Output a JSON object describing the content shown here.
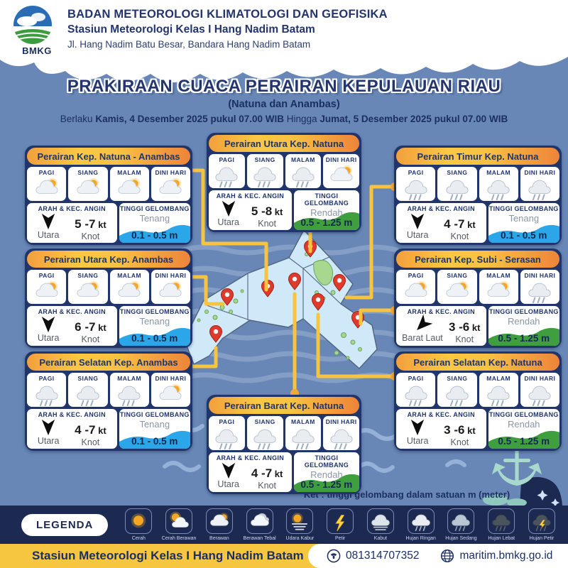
{
  "header": {
    "logo_text": "BMKG",
    "org": "BADAN METEOROLOGI KLIMATOLOGI DAN GEOFISIKA",
    "station": "Stasiun Meteorologi Kelas I Hang Nadim Batam",
    "address": "Jl. Hang Nadim Batu Besar, Bandara Hang Nadim Batam"
  },
  "title": {
    "main": "PRAKIRAAN CUACA PERAIRAN KEPULAUAN RIAU",
    "sub": "(Natuna dan Anambas)",
    "validity": {
      "prefix": "Berlaku",
      "start": "Kamis, 4 Desember 2025 pukul 07.00",
      "tz1": "WIB",
      "connector": "Hingga",
      "end": "Jumat, 5 Desember 2025 pukul 07.00",
      "tz2": "WIB"
    }
  },
  "labels": {
    "time_slots": [
      "PAGI",
      "SIANG",
      "MALAM",
      "DINI HARI"
    ],
    "wind": "ARAH & KEC. ANGIN",
    "wave": "TINGGI GELOMBANG",
    "knot": "Knot"
  },
  "cards": [
    {
      "title": "Perairan Kep. Natuna - Anambas",
      "icons": [
        "berawan",
        "berawan",
        "berawan",
        "berawan"
      ],
      "wind": {
        "dir": "Utara",
        "min": "5",
        "max": "-7",
        "unit": "kt"
      },
      "wave": {
        "category": "Tenang",
        "value": "0.1 - 0.5 m",
        "color": "blue"
      }
    },
    {
      "title": "Perairan Utara Kep. Natuna",
      "icons": [
        "hujan-ringan",
        "hujan-ringan",
        "hujan-ringan",
        "berawan"
      ],
      "wind": {
        "dir": "Utara",
        "min": "5",
        "max": "-8",
        "unit": "kt"
      },
      "wave": {
        "category": "Rendah",
        "value": "0.5 - 1.25 m",
        "color": "green"
      }
    },
    {
      "title": "Perairan Timur Kep. Natuna",
      "icons": [
        "hujan-ringan",
        "hujan-ringan",
        "hujan-ringan",
        "hujan-ringan"
      ],
      "wind": {
        "dir": "Utara",
        "min": "4",
        "max": "-7",
        "unit": "kt"
      },
      "wave": {
        "category": "Tenang",
        "value": "0.1 - 0.5 m",
        "color": "blue"
      }
    },
    {
      "title": "Perairan Utara Kep. Anambas",
      "icons": [
        "berawan",
        "berawan",
        "berawan",
        "berawan"
      ],
      "wind": {
        "dir": "Utara",
        "min": "6",
        "max": "-7",
        "unit": "kt"
      },
      "wave": {
        "category": "Tenang",
        "value": "0.1 - 0.5 m",
        "color": "blue"
      }
    },
    {
      "title": "Perairan Kep. Subi - Serasan",
      "icons": [
        "berawan",
        "berawan",
        "berawan",
        "hujan-ringan"
      ],
      "wind": {
        "dir": "Barat Laut",
        "min": "3",
        "max": "-6",
        "unit": "kt"
      },
      "wave": {
        "category": "Rendah",
        "value": "0.5 - 1.25 m",
        "color": "green"
      }
    },
    {
      "title": "Perairan Selatan Kep. Anambas",
      "icons": [
        "hujan-ringan",
        "hujan-ringan",
        "hujan-ringan",
        "berawan"
      ],
      "wind": {
        "dir": "Utara",
        "min": "4",
        "max": "-7",
        "unit": "kt"
      },
      "wave": {
        "category": "Tenang",
        "value": "0.1 - 0.5 m",
        "color": "blue"
      }
    },
    {
      "title": "Perairan Selatan Kep. Natuna",
      "icons": [
        "hujan-ringan",
        "hujan-ringan",
        "hujan-ringan",
        "hujan-ringan"
      ],
      "wind": {
        "dir": "Utara",
        "min": "3",
        "max": "-6",
        "unit": "kt"
      },
      "wave": {
        "category": "Rendah",
        "value": "0.5 - 1.25 m",
        "color": "green"
      }
    },
    {
      "title": "Perairan Barat Kep. Natuna",
      "icons": [
        "hujan-ringan",
        "hujan-ringan",
        "hujan-ringan",
        "hujan-ringan"
      ],
      "wind": {
        "dir": "Utara",
        "min": "4",
        "max": "-7",
        "unit": "kt"
      },
      "wave": {
        "category": "Rendah",
        "value": "0.5 - 1.25 m",
        "color": "green"
      }
    }
  ],
  "note": "Ket : tinggi gelombang dalam satuan m (meter)",
  "legend": {
    "title": "LEGENDA",
    "items": [
      {
        "type": "cerah",
        "label": "Cerah"
      },
      {
        "type": "cerah-berawan",
        "label": "Cerah Berawan"
      },
      {
        "type": "berawan",
        "label": "Berawan"
      },
      {
        "type": "berawan-tebal",
        "label": "Berawan Tebal"
      },
      {
        "type": "udara-kabur",
        "label": "Udara Kabur"
      },
      {
        "type": "petir",
        "label": "Petir"
      },
      {
        "type": "kabut",
        "label": "Kabut"
      },
      {
        "type": "hujan-ringan",
        "label": "Hujan Ringan"
      },
      {
        "type": "hujan-sedang",
        "label": "Hujan Sedang"
      },
      {
        "type": "hujan-lebat",
        "label": "Hujan Lebat"
      },
      {
        "type": "hujan-petir",
        "label": "Hujan Petir"
      }
    ]
  },
  "footer": {
    "station": "Stasiun Meteorologi Kelas I Hang Nadim Batam",
    "phone": "081314707352",
    "website": "maritim.bmkg.go.id"
  },
  "colors": {
    "background": "#6887b6",
    "navy": "#1e3168",
    "accent_yellow": "#f7c440",
    "accent_orange": "#ee8c3c",
    "wave_calm_blue": "#2aa6e9",
    "wave_low_green": "#3f9e3d",
    "footer_yellow": "#f6c640"
  }
}
